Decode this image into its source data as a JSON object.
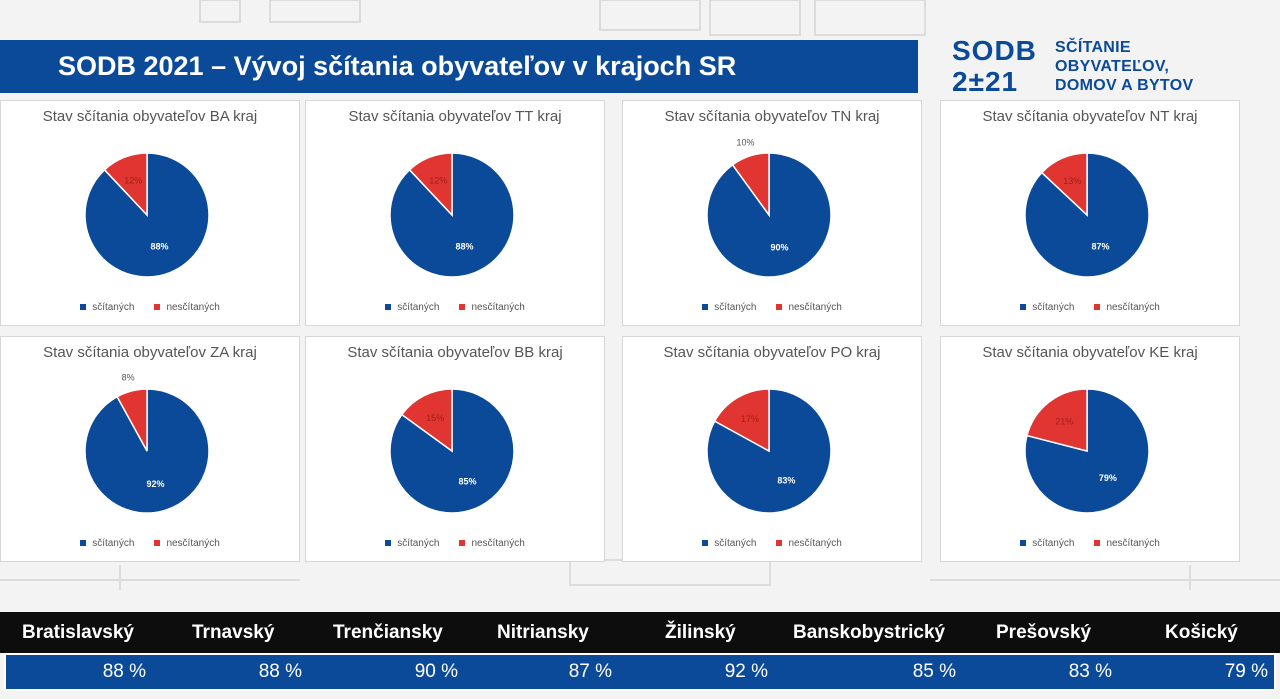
{
  "header": {
    "title": "SODB 2021 – Vývoj sčítania obyvateľov v krajoch SR",
    "logo_sodb": "SODB",
    "logo_year": "2±21",
    "logo_text_lines": [
      "SČÍTANIE",
      "OBYVATEĽOV,",
      "DOMOV A BYTOV"
    ]
  },
  "colors": {
    "counted": "#0b4a98",
    "not_counted": "#e03530",
    "title_bar": "#0b4a98"
  },
  "legend": {
    "counted": "sčítaných",
    "not_counted": "nesčítaných"
  },
  "chart_data": [
    {
      "type": "pie",
      "title": "Stav sčítania obyvateľov BA kraj",
      "categories": [
        "sčítaných",
        "nesčítaných"
      ],
      "values": [
        88,
        12
      ],
      "labels": [
        "88%",
        "12%"
      ]
    },
    {
      "type": "pie",
      "title": "Stav sčítania obyvateľov TT kraj",
      "categories": [
        "sčítaných",
        "nesčítaných"
      ],
      "values": [
        88,
        12
      ],
      "labels": [
        "88%",
        "12%"
      ]
    },
    {
      "type": "pie",
      "title": "Stav sčítania obyvateľov TN kraj",
      "categories": [
        "sčítaných",
        "nesčítaných"
      ],
      "values": [
        90,
        10
      ],
      "labels": [
        "90%",
        "10%"
      ]
    },
    {
      "type": "pie",
      "title": "Stav sčítania obyvateľov NT kraj",
      "categories": [
        "sčítaných",
        "nesčítaných"
      ],
      "values": [
        87,
        13
      ],
      "labels": [
        "87%",
        "13%"
      ]
    },
    {
      "type": "pie",
      "title": "Stav sčítania obyvateľov ZA kraj",
      "categories": [
        "sčítaných",
        "nesčítaných"
      ],
      "values": [
        92,
        8
      ],
      "labels": [
        "92%",
        "8%"
      ]
    },
    {
      "type": "pie",
      "title": "Stav sčítania obyvateľov BB kraj",
      "categories": [
        "sčítaných",
        "nesčítaných"
      ],
      "values": [
        85,
        15
      ],
      "labels": [
        "85%",
        "15%"
      ]
    },
    {
      "type": "pie",
      "title": "Stav sčítania obyvateľov PO kraj",
      "categories": [
        "sčítaných",
        "nesčítaných"
      ],
      "values": [
        83,
        17
      ],
      "labels": [
        "83%",
        "17%"
      ]
    },
    {
      "type": "pie",
      "title": "Stav sčítania obyvateľov KE kraj",
      "categories": [
        "sčítaných",
        "nesčítaných"
      ],
      "values": [
        79,
        21
      ],
      "labels": [
        "79%",
        "21%"
      ]
    }
  ],
  "summary": {
    "regions": [
      "Bratislavský",
      "Trnavský",
      "Trenčiansky",
      "Nitriansky",
      "Žilinský",
      "Banskobystrický",
      "Prešovský",
      "Košický"
    ],
    "values": [
      "88 %",
      "88 %",
      "90 %",
      "87 %",
      "92 %",
      "85 %",
      "83 %",
      "79 %"
    ]
  }
}
